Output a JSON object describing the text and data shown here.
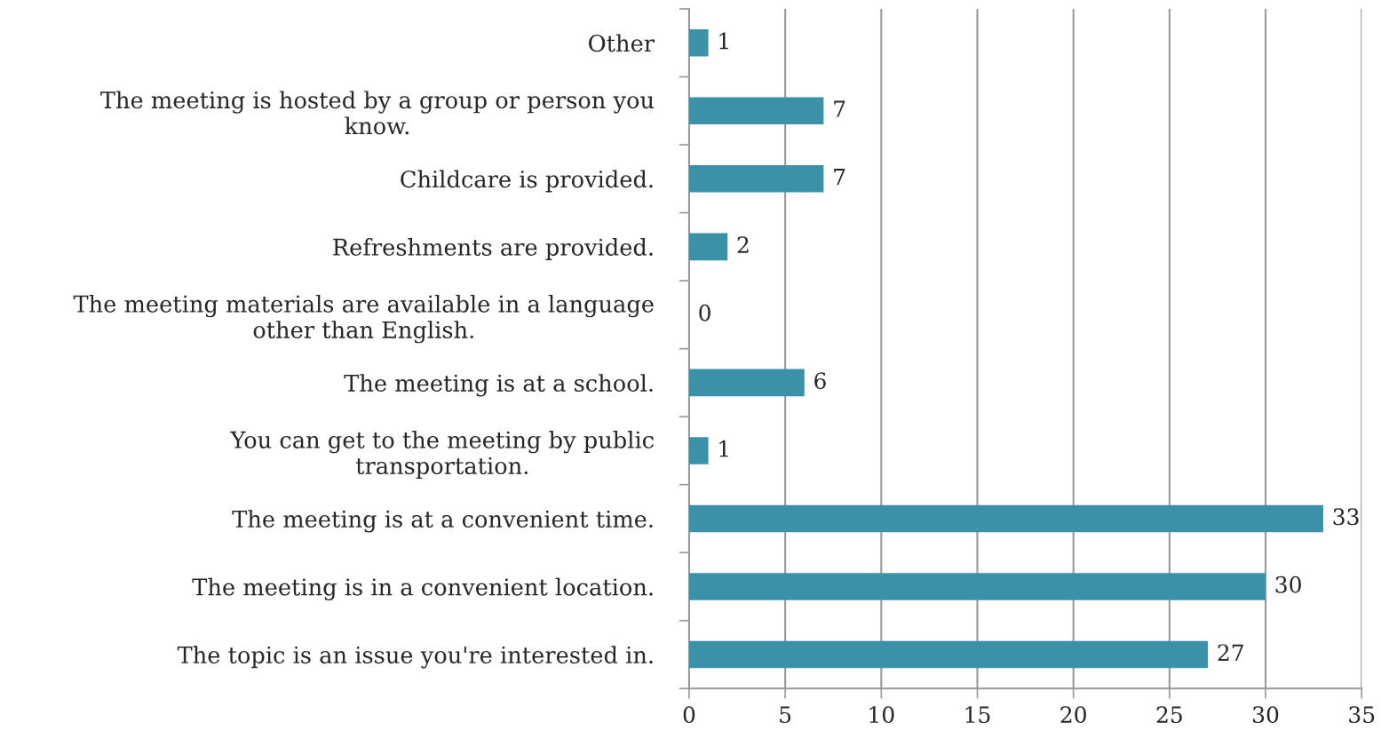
{
  "chart_data": {
    "type": "bar",
    "orientation": "horizontal",
    "categories": [
      "Other",
      "The meeting is hosted by a group or person you\nknow.",
      "Childcare is provided.",
      "Refreshments are provided.",
      "The meeting materials are available in a language\nother than English.",
      "The meeting is at a school.",
      "You can get to the meeting by public\ntransportation.",
      "The meeting is at a convenient time.",
      "The meeting is in a convenient location.",
      "The topic is an issue you're interested in."
    ],
    "values": [
      1,
      7,
      7,
      2,
      0,
      6,
      1,
      33,
      30,
      27
    ],
    "color": "#3a91a8",
    "xlim": [
      0,
      35
    ],
    "xticks": [
      0,
      5,
      10,
      15,
      20,
      25,
      30,
      35
    ],
    "grid": "x",
    "data_labels": true,
    "legend": false
  }
}
